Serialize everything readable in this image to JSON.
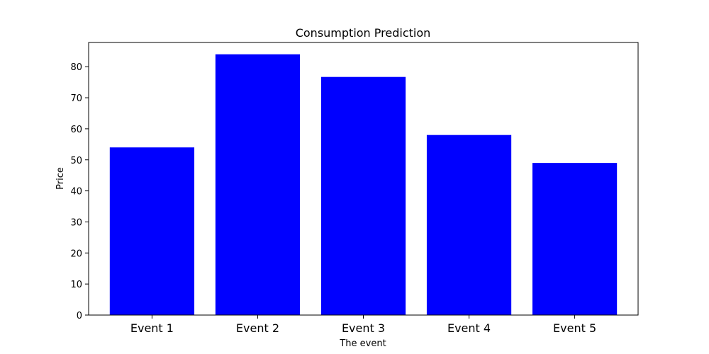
{
  "chart_data": {
    "type": "bar",
    "title": "Consumption Prediction",
    "xlabel": "The event",
    "ylabel": "Price",
    "categories": [
      "Event 1",
      "Event 2",
      "Event 3",
      "Event 4",
      "Event 5"
    ],
    "values": [
      54,
      84,
      76.7,
      58,
      49
    ],
    "ylim": [
      0,
      87.8
    ],
    "yticks": [
      0,
      10,
      20,
      30,
      40,
      50,
      60,
      70,
      80
    ],
    "bar_color": "#0000ff",
    "grid": false,
    "legend": "none"
  }
}
